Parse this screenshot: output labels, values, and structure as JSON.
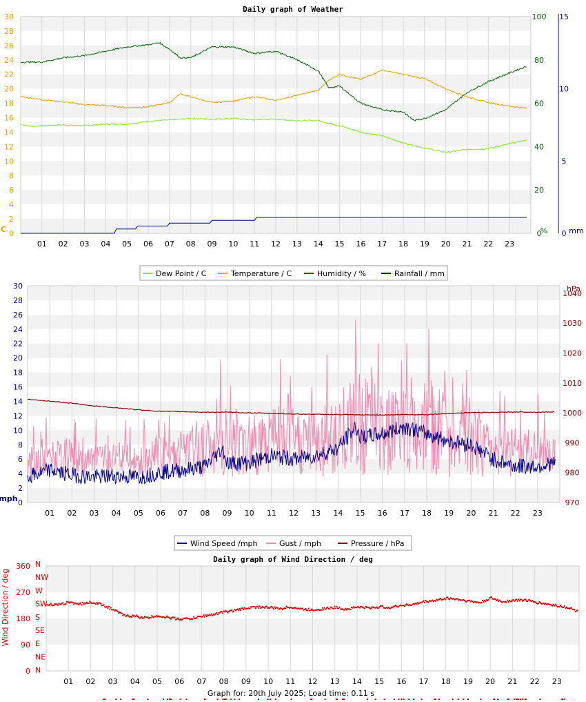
{
  "footer_text": "Graph for: 20th July 2025; Load time: 0.11 s",
  "chart_data": [
    {
      "type": "line",
      "title": "Daily graph of Weather",
      "categories": [
        "01",
        "02",
        "03",
        "04",
        "05",
        "06",
        "07",
        "08",
        "09",
        "10",
        "11",
        "12",
        "13",
        "14",
        "15",
        "16",
        "17",
        "18",
        "19",
        "20",
        "21",
        "22",
        "23"
      ],
      "left_axis": {
        "unit": "C",
        "ticks": [
          0,
          2,
          4,
          6,
          8,
          10,
          12,
          14,
          16,
          18,
          20,
          22,
          24,
          26,
          28,
          30
        ],
        "ylim": [
          0,
          30
        ],
        "color": "#e8a000"
      },
      "right_axis1": {
        "unit": "%",
        "ticks": [
          0,
          20,
          40,
          60,
          80,
          100
        ],
        "ylim": [
          0,
          100
        ],
        "color": "#006400"
      },
      "right_axis2": {
        "unit": "mm",
        "ticks": [
          0,
          5,
          10,
          15
        ],
        "ylim": [
          0,
          15
        ],
        "color": "#00008b"
      },
      "legend": [
        "Dew Point / C",
        "Temperature / C",
        "Humidity / %",
        "Rainfall / mm"
      ],
      "series": [
        {
          "name": "Dew Point / C",
          "color": "#7fe817",
          "axis": "left",
          "x": [
            0,
            0.5,
            1,
            2,
            3,
            4,
            5,
            6,
            7,
            8,
            9,
            10,
            11,
            12,
            13,
            14,
            15,
            16,
            17,
            18,
            19,
            20,
            21,
            22,
            23,
            23.8
          ],
          "values": [
            15.1,
            14.8,
            14.9,
            15.0,
            14.9,
            15.1,
            15.1,
            15.5,
            15.7,
            15.9,
            15.8,
            15.9,
            15.7,
            15.8,
            15.6,
            15.6,
            14.9,
            14.0,
            13.5,
            12.5,
            11.8,
            11.2,
            11.6,
            11.7,
            12.4,
            12.9
          ]
        },
        {
          "name": "Temperature / C",
          "color": "#e8a000",
          "axis": "left",
          "x": [
            0,
            1,
            2,
            3,
            4,
            5,
            6,
            7,
            7.5,
            8,
            9,
            10,
            11,
            12,
            13,
            14,
            14.5,
            15,
            16,
            17,
            18,
            19,
            20,
            21,
            22,
            23,
            23.8
          ],
          "values": [
            18.9,
            18.5,
            18.2,
            17.8,
            17.7,
            17.4,
            17.5,
            18.1,
            19.3,
            18.9,
            18.1,
            18.3,
            18.9,
            18.4,
            19.1,
            19.8,
            21.2,
            22.0,
            21.3,
            22.6,
            22.0,
            21.4,
            20.0,
            18.9,
            18.1,
            17.6,
            17.3
          ]
        },
        {
          "name": "Humidity / %",
          "color": "#006400",
          "axis": "right1",
          "x": [
            0,
            1,
            2,
            3,
            4,
            5,
            6,
            6.5,
            7,
            7.5,
            8,
            9,
            10,
            11,
            12,
            13,
            14,
            14.5,
            15,
            16,
            17,
            18,
            18.5,
            19,
            20,
            21,
            22,
            23,
            23.8
          ],
          "values": [
            79,
            79,
            81,
            82,
            84,
            86,
            87,
            88,
            85,
            81,
            81,
            86,
            86,
            83,
            84,
            80,
            75,
            67,
            68,
            60,
            57,
            56,
            52,
            53,
            57,
            65,
            70,
            74,
            77
          ]
        },
        {
          "name": "Rainfall / mm",
          "color": "#00008b",
          "axis": "right2",
          "x": [
            0,
            4.4,
            4.5,
            5.4,
            5.5,
            6.9,
            7.0,
            8.9,
            9.0,
            11.0,
            11.1,
            23.8
          ],
          "values": [
            0,
            0,
            0.3,
            0.3,
            0.5,
            0.5,
            0.7,
            0.7,
            0.9,
            0.9,
            1.1,
            1.1
          ]
        }
      ]
    },
    {
      "type": "line",
      "title": "",
      "categories": [
        "01",
        "02",
        "03",
        "04",
        "05",
        "06",
        "07",
        "08",
        "09",
        "10",
        "11",
        "12",
        "13",
        "14",
        "15",
        "16",
        "17",
        "18",
        "19",
        "20",
        "21",
        "22",
        "23"
      ],
      "left_axis": {
        "unit": "mph",
        "ticks": [
          0,
          2,
          4,
          6,
          8,
          10,
          12,
          14,
          16,
          18,
          20,
          22,
          24,
          26,
          28,
          30
        ],
        "ylim": [
          0,
          30
        ],
        "color": "#00008b"
      },
      "right_axis": {
        "unit": "hPa",
        "ticks": [
          970,
          980,
          990,
          1000,
          1010,
          1020,
          1030,
          1040
        ],
        "ylim": [
          970,
          1042.5
        ],
        "color": "#8b0000"
      },
      "legend": [
        "Wind Speed /mph",
        "Gust / mph",
        "Pressure / hPa"
      ],
      "series": [
        {
          "name": "Wind Speed /mph",
          "color": "#00008b",
          "axis": "left",
          "x": [
            0,
            1,
            2,
            3,
            4,
            5,
            6,
            7,
            8,
            8.8,
            9,
            10,
            11,
            12,
            13,
            14,
            14.8,
            15,
            16,
            17,
            18,
            19,
            20,
            21,
            22,
            23,
            23.8
          ],
          "values": [
            3.5,
            4.5,
            3.8,
            3.5,
            3.7,
            3.5,
            4.2,
            4.5,
            5.0,
            7.5,
            5.5,
            5.5,
            6.5,
            6.0,
            6.5,
            7.5,
            10.5,
            9.0,
            9.5,
            10.5,
            9.5,
            8.5,
            8.0,
            6.0,
            5.0,
            5.0,
            5.5
          ]
        },
        {
          "name": "Gust / mph",
          "color": "#f08ab0",
          "axis": "left",
          "x": [
            0,
            1,
            2,
            3,
            4,
            5,
            6,
            7,
            8,
            9,
            10,
            11,
            12,
            13,
            14,
            15,
            16,
            17,
            18,
            19,
            20,
            21,
            22,
            23,
            23.8
          ],
          "values": [
            7,
            8,
            8,
            7,
            8,
            7,
            9,
            9,
            11,
            12,
            11,
            12,
            12,
            12,
            14,
            16,
            15,
            16,
            15,
            14,
            12,
            11,
            9,
            9,
            8
          ],
          "peaks": [
            [
              0.6,
              9.8
            ],
            [
              2.1,
              11.6
            ],
            [
              3.1,
              11.6
            ],
            [
              4.4,
              11.4
            ],
            [
              5.9,
              11.5
            ],
            [
              8.7,
              19.8
            ],
            [
              11.4,
              19.8
            ],
            [
              13.5,
              20.5
            ],
            [
              14.8,
              25.3
            ],
            [
              15.8,
              22.0
            ],
            [
              17.1,
              22.0
            ],
            [
              18.1,
              24.1
            ],
            [
              18.8,
              18.2
            ],
            [
              19.8,
              18.3
            ],
            [
              21.3,
              15.4
            ],
            [
              23.0,
              15.0
            ]
          ]
        },
        {
          "name": "Pressure / hPa",
          "color": "#8b0000",
          "axis": "right",
          "x": [
            0,
            1,
            2,
            3,
            4,
            5,
            6,
            7,
            8,
            9,
            10,
            11,
            12,
            13,
            14,
            15,
            16,
            17,
            18,
            19,
            20,
            21,
            22,
            23,
            23.8
          ],
          "values": [
            1004.5,
            1003.9,
            1003.2,
            1002.3,
            1001.7,
            1001.0,
            1000.5,
            1000.4,
            1000.2,
            1000.2,
            1000.0,
            999.8,
            999.6,
            999.5,
            999.4,
            999.3,
            999.3,
            999.4,
            999.4,
            999.8,
            1000.1,
            1000.1,
            1000.3,
            1000.2,
            1000.3
          ]
        }
      ]
    },
    {
      "type": "scatter",
      "title": "Daily graph of Wind Direction / deg",
      "categories": [
        "01",
        "02",
        "03",
        "04",
        "05",
        "06",
        "07",
        "08",
        "09",
        "10",
        "11",
        "12",
        "13",
        "14",
        "15",
        "16",
        "17",
        "18",
        "19",
        "20",
        "21",
        "22",
        "23"
      ],
      "ylabel": "Wind Direction / deg",
      "ticks": [
        0,
        90,
        180,
        270,
        360
      ],
      "ylim": [
        0,
        360
      ],
      "compass": [
        "N",
        "NW",
        "W",
        "SW",
        "S",
        "SE",
        "E",
        "NE",
        "N"
      ],
      "series": [
        {
          "name": "",
          "color": "#e00000",
          "x": [
            0,
            0.5,
            1,
            1.5,
            2,
            2.5,
            3,
            3.5,
            4,
            4.5,
            5,
            5.5,
            6,
            6.5,
            7,
            7.5,
            8,
            8.5,
            9,
            9.5,
            10,
            10.5,
            11,
            11.5,
            12,
            12.5,
            13,
            13.5,
            14,
            14.5,
            15,
            15.5,
            16,
            16.5,
            17,
            17.5,
            18,
            18.5,
            19,
            19.5,
            20,
            20.5,
            21,
            21.5,
            22,
            22.5,
            23,
            23.5,
            23.9
          ],
          "values": [
            232,
            228,
            238,
            232,
            238,
            230,
            212,
            192,
            190,
            184,
            192,
            185,
            180,
            182,
            190,
            196,
            205,
            210,
            218,
            222,
            220,
            216,
            222,
            214,
            212,
            216,
            220,
            214,
            222,
            218,
            222,
            220,
            228,
            230,
            240,
            244,
            252,
            248,
            242,
            236,
            252,
            240,
            244,
            246,
            238,
            232,
            226,
            220,
            206
          ]
        }
      ]
    }
  ]
}
